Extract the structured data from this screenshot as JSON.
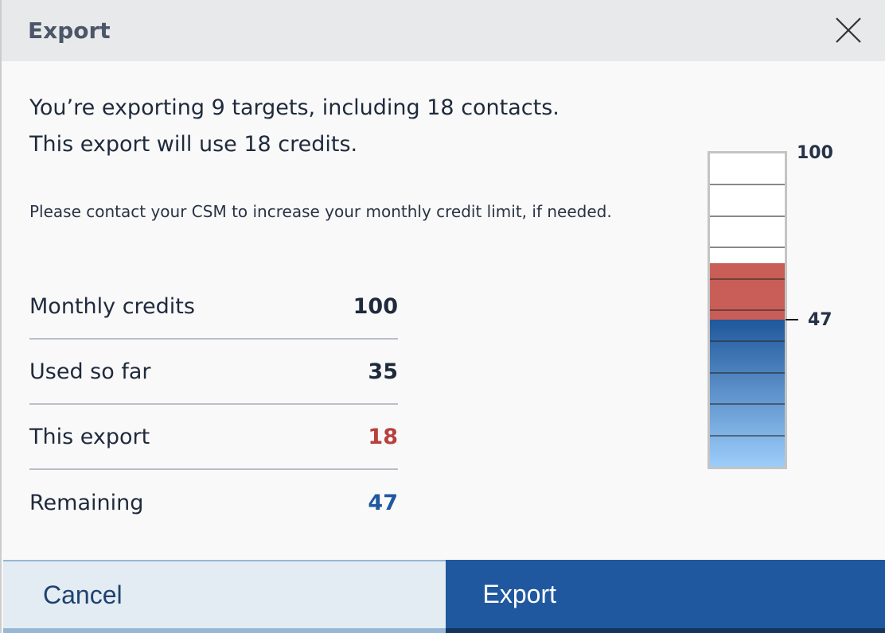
{
  "dialog": {
    "title": "Export",
    "close_icon": "close-icon"
  },
  "summary": {
    "line1": "You’re exporting 9 targets, including 18 contacts.",
    "line2": "This export will use 18 credits."
  },
  "note": "Please contact your CSM to increase your monthly credit limit, if needed.",
  "credits": [
    {
      "label": "Monthly credits",
      "value": "100",
      "color": "#1f2a3c"
    },
    {
      "label": "Used so far",
      "value": "35",
      "color": "#1f2a3c"
    },
    {
      "label": "This export",
      "value": "18",
      "color": "#b8403c"
    },
    {
      "label": "Remaining",
      "value": "47",
      "color": "#2058a0"
    }
  ],
  "gauge": {
    "max": 100,
    "max_label": "100",
    "remaining": 47,
    "remaining_label": "47",
    "this_export": 18,
    "red": "#c95d57",
    "blue_top": "#1f579b",
    "blue_bottom": "#9ccdfa"
  },
  "buttons": {
    "cancel": "Cancel",
    "export": "Export"
  }
}
